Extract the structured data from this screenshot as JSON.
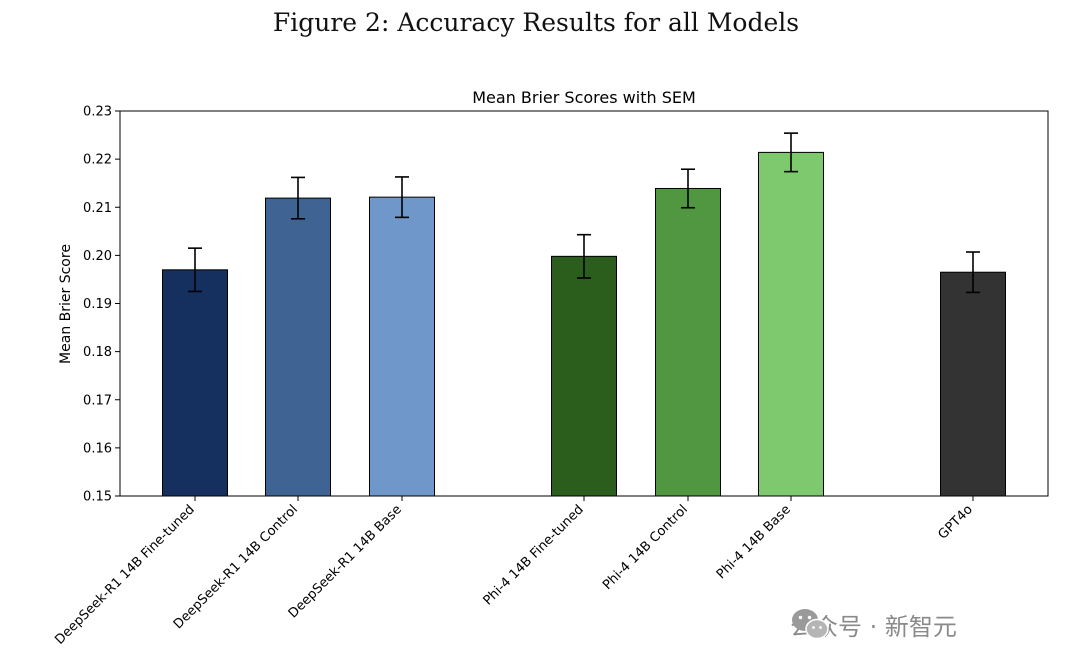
{
  "figure_caption": "Figure 2: Accuracy Results for all Models",
  "chart_data": {
    "type": "bar",
    "title": "Mean Brier Scores with SEM",
    "xlabel": "",
    "ylabel": "Mean Brier Score",
    "ylim": [
      0.15,
      0.23
    ],
    "yticks": [
      "0.15",
      "0.16",
      "0.17",
      "0.18",
      "0.19",
      "0.20",
      "0.21",
      "0.22",
      "0.23"
    ],
    "grid": false,
    "categories": [
      "DeepSeek-R1 14B Fine-tuned",
      "DeepSeek-R1 14B Control",
      "DeepSeek-R1 14B Base",
      "Phi-4 14B Fine-tuned",
      "Phi-4 14B Control",
      "Phi-4 14B Base",
      "GPT4o"
    ],
    "values": [
      0.197,
      0.2119,
      0.2121,
      0.1998,
      0.2139,
      0.2214,
      0.1965
    ],
    "errors": [
      0.0045,
      0.0043,
      0.0042,
      0.0045,
      0.004,
      0.004,
      0.0042
    ],
    "colors": [
      "#15305f",
      "#3f6494",
      "#7097ca",
      "#2b5e1c",
      "#519641",
      "#7ec86e",
      "#333333"
    ]
  },
  "watermark": {
    "text": "公众号 · 新智元",
    "icon": "wechat-icon"
  }
}
